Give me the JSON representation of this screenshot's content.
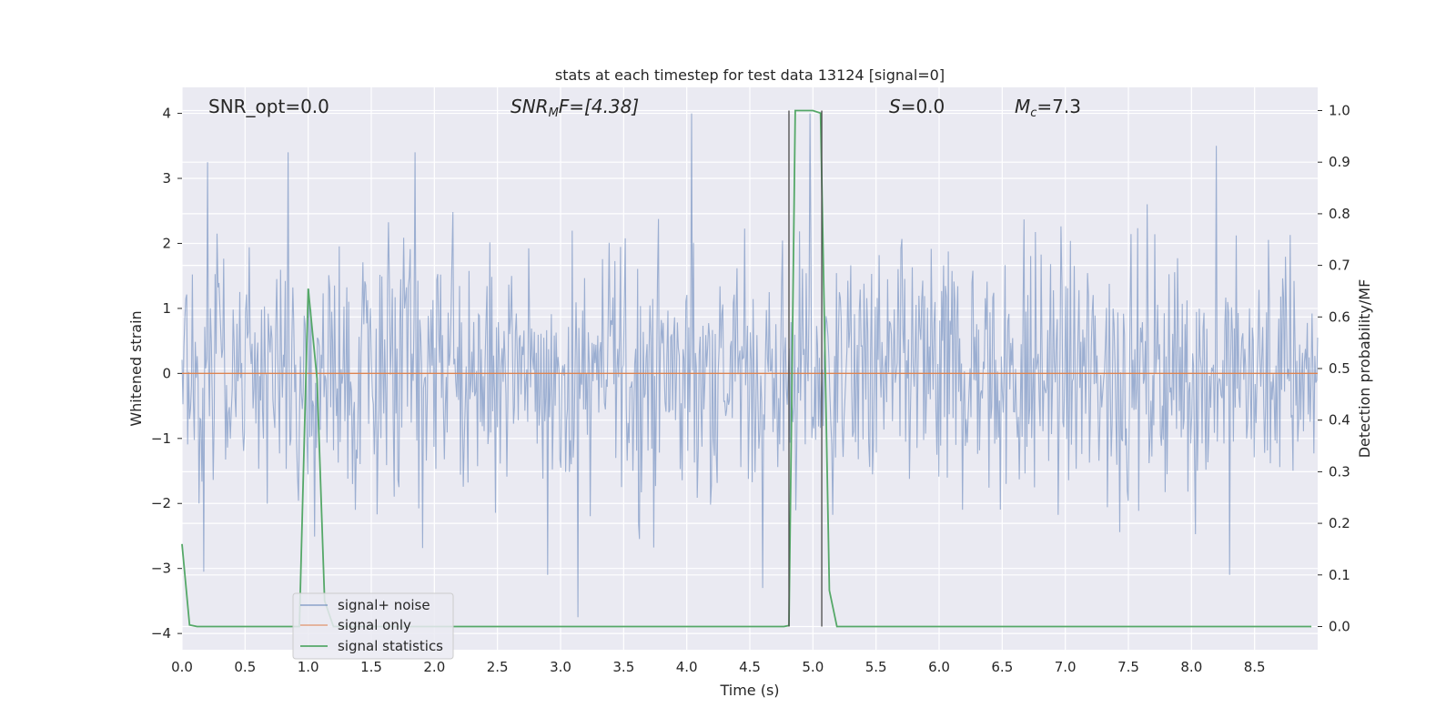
{
  "chart_data": {
    "type": "line",
    "title": "stats at each timestep for test data 13124 [signal=0]",
    "xlabel": "Time (s)",
    "ylabel": "Whitened strain",
    "ylabel_right": "Detection probability/MF",
    "xlim": [
      0.0,
      9.0
    ],
    "ylim": [
      -4.25,
      4.4
    ],
    "ylim_right": [
      -0.045,
      1.045
    ],
    "x_ticks": [
      "0.0",
      "0.5",
      "1.0",
      "1.5",
      "2.0",
      "2.5",
      "3.0",
      "3.5",
      "4.0",
      "4.5",
      "5.0",
      "5.5",
      "6.0",
      "6.5",
      "7.0",
      "7.5",
      "8.0",
      "8.5"
    ],
    "y_ticks": [
      "4",
      "3",
      "2",
      "1",
      "0",
      "−1",
      "−2",
      "−3",
      "−4"
    ],
    "y_right_ticks": [
      "1.0",
      "0.9",
      "0.8",
      "0.7",
      "0.6",
      "0.5",
      "0.4",
      "0.3",
      "0.2",
      "0.1",
      "0.0"
    ],
    "grid": true,
    "legend_position": "lower-left",
    "annotations": {
      "snr_opt": "SNR_opt=0.0",
      "snr_mf": "SNR",
      "snr_mf_sub": "M",
      "snr_mf_tail": "F=[4.38]",
      "s_label": "S",
      "s_value": "=0.0",
      "mc_label": "M",
      "mc_sub": "c",
      "mc_value": "=7.3"
    },
    "colors": {
      "background": "#eaeaf2",
      "grid": "#ffffff",
      "signal_noise": "#4c72b0",
      "signal_only": "#dd8452",
      "signal_statistics": "#55a868",
      "vlines": "#4a4a4a"
    },
    "vlines": [
      4.81,
      5.07
    ],
    "series": [
      {
        "name": "signal+ noise",
        "kind": "noise",
        "sigma": 0.95,
        "n_points": 1200,
        "extremes": [
          {
            "x": 0.2,
            "y": 3.25
          },
          {
            "x": 0.84,
            "y": 3.4
          },
          {
            "x": 1.85,
            "y": 3.4
          },
          {
            "x": 4.04,
            "y": 4.0
          },
          {
            "x": 4.98,
            "y": 4.0
          },
          {
            "x": 8.2,
            "y": 3.5
          },
          {
            "x": 3.14,
            "y": -3.75
          },
          {
            "x": 4.6,
            "y": -3.3
          },
          {
            "x": 8.3,
            "y": -3.1
          },
          {
            "x": 0.17,
            "y": -3.05
          },
          {
            "x": 2.9,
            "y": -3.1
          }
        ]
      },
      {
        "name": "signal only",
        "kind": "line",
        "x": [
          0.0,
          9.0
        ],
        "y": [
          0.0,
          0.0
        ]
      },
      {
        "name": "signal statistics",
        "kind": "line",
        "axis": "right",
        "x": [
          0.0,
          0.06,
          0.12,
          0.5,
          0.93,
          1.0,
          1.07,
          1.13,
          1.2,
          4.77,
          4.81,
          4.86,
          5.0,
          5.06,
          5.13,
          5.19,
          8.95
        ],
        "y": [
          0.16,
          0.003,
          0.0,
          0.0,
          0.0,
          0.655,
          0.48,
          0.05,
          0.0,
          0.0,
          0.002,
          1.0,
          1.0,
          0.995,
          0.07,
          0.0,
          0.0
        ]
      }
    ]
  }
}
